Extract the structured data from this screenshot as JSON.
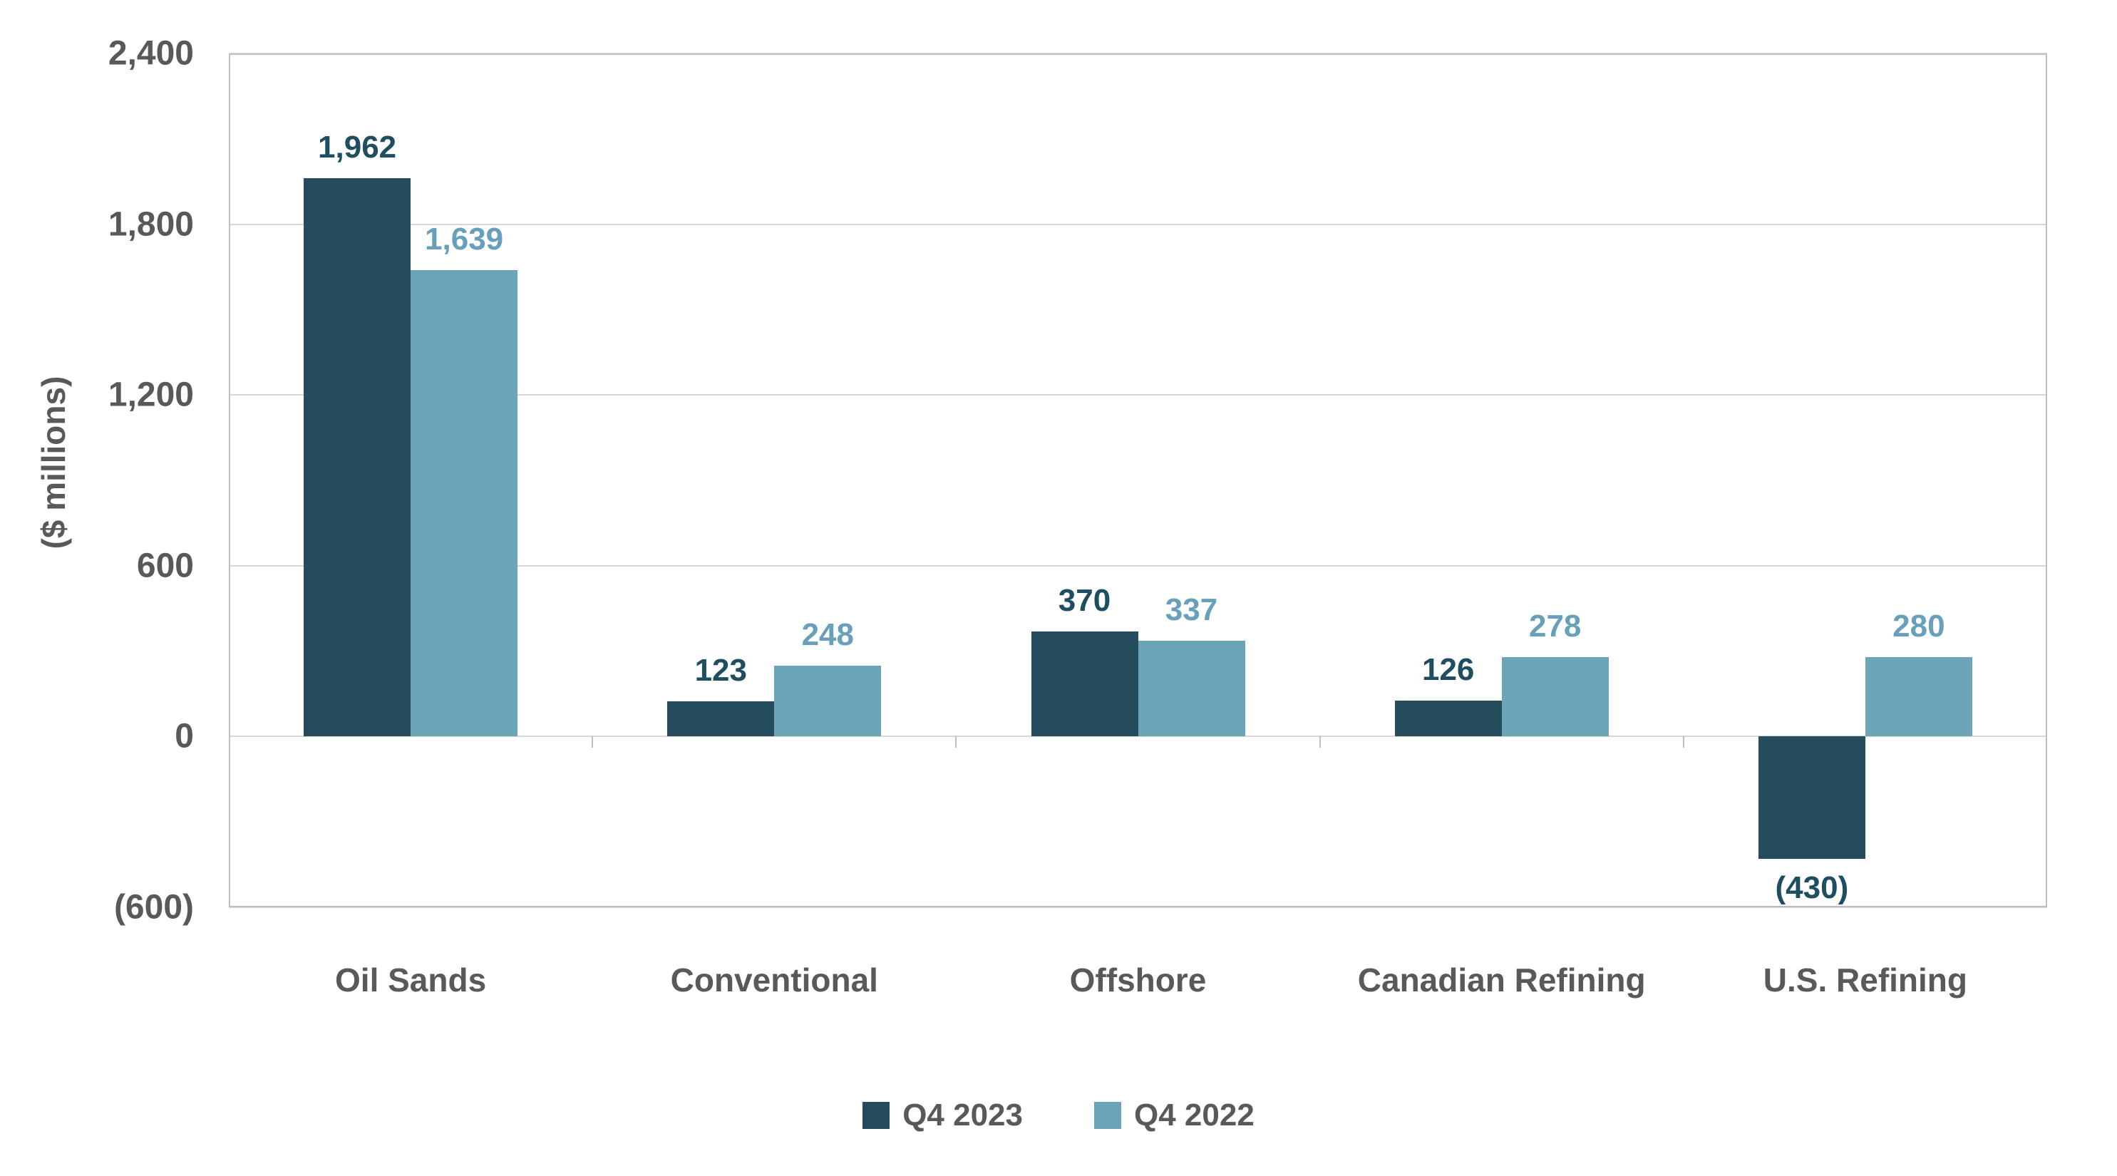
{
  "chart_data": {
    "type": "bar",
    "title": "",
    "ylabel": "($ millions)",
    "xlabel": "",
    "categories": [
      "Oil Sands",
      "Conventional",
      "Offshore",
      "Canadian Refining",
      "U.S. Refining"
    ],
    "series": [
      {
        "name": "Q4 2023",
        "color": "#244c5d",
        "label_color": "#1f4e61",
        "values": [
          1962,
          123,
          370,
          126,
          -430
        ],
        "labels": [
          "1,962",
          "123",
          "370",
          "126",
          "(430)"
        ]
      },
      {
        "name": "Q4 2022",
        "color": "#6ca4b8",
        "label_color": "#68a0bc",
        "values": [
          1639,
          248,
          337,
          278,
          280
        ],
        "labels": [
          "1,639",
          "248",
          "337",
          "278",
          "280"
        ]
      }
    ],
    "ylim": [
      -600,
      2400
    ],
    "yticks": [
      {
        "value": 2400,
        "label": "2,400"
      },
      {
        "value": 1800,
        "label": "1,800"
      },
      {
        "value": 1200,
        "label": "1,200"
      },
      {
        "value": 600,
        "label": "600"
      },
      {
        "value": 0,
        "label": "0"
      },
      {
        "value": -600,
        "label": "(600)"
      }
    ],
    "grid": true,
    "legend_position": "bottom",
    "colors": {
      "axis_text": "#595959",
      "gridline": "#d6d6d6",
      "plot_border": "#bfbfbf",
      "background": "#ffffff"
    }
  }
}
